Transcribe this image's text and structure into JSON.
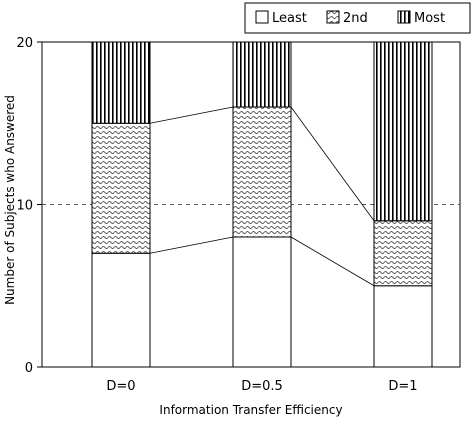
{
  "chart_data": {
    "type": "bar",
    "stacked": true,
    "categories": [
      "D=0",
      "D=0.5",
      "D=1"
    ],
    "series": [
      {
        "name": "Least",
        "values": [
          7,
          8,
          5
        ],
        "pattern": "white"
      },
      {
        "name": "2nd",
        "values": [
          8,
          8,
          4
        ],
        "pattern": "wavy-hatch"
      },
      {
        "name": "Most",
        "values": [
          5,
          4,
          11
        ],
        "pattern": "vertical-stripes"
      }
    ],
    "title": "",
    "xlabel": "Information Transfer Efficiency",
    "ylabel": "Number of Subjects who Answered",
    "ylim": [
      0,
      20
    ],
    "yticks": [
      "0",
      "10",
      "20"
    ],
    "reference_line": {
      "y": 10,
      "style": "dashed"
    },
    "connector_lines": true,
    "legend_position": "top-right",
    "grid": false,
    "colors": {
      "stroke": "#000000",
      "background": "#ffffff",
      "dashed": "#555555"
    }
  }
}
